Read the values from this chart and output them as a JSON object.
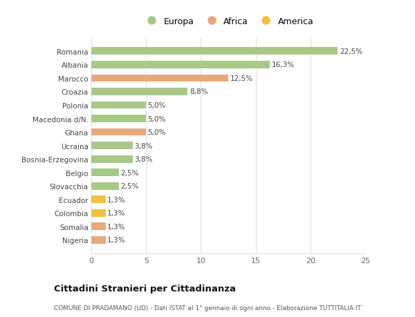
{
  "categories": [
    "Nigeria",
    "Somalia",
    "Colombia",
    "Ecuador",
    "Slovacchia",
    "Belgio",
    "Bosnia-Erzegovina",
    "Ucraina",
    "Ghana",
    "Macedonia d/N.",
    "Polonia",
    "Croazia",
    "Marocco",
    "Albania",
    "Romania"
  ],
  "values": [
    1.3,
    1.3,
    1.3,
    1.3,
    2.5,
    2.5,
    3.8,
    3.8,
    5.0,
    5.0,
    5.0,
    8.8,
    12.5,
    16.3,
    22.5
  ],
  "colors": [
    "#e8a87c",
    "#e8a87c",
    "#f0c040",
    "#f0c040",
    "#a8c887",
    "#a8c887",
    "#a8c887",
    "#a8c887",
    "#e8a87c",
    "#a8c887",
    "#a8c887",
    "#a8c887",
    "#e8a87c",
    "#a8c887",
    "#a8c887"
  ],
  "labels": [
    "1,3%",
    "1,3%",
    "1,3%",
    "1,3%",
    "2,5%",
    "2,5%",
    "3,8%",
    "3,8%",
    "5,0%",
    "5,0%",
    "5,0%",
    "8,8%",
    "12,5%",
    "16,3%",
    "22,5%"
  ],
  "legend_labels": [
    "Europa",
    "Africa",
    "America"
  ],
  "legend_colors": [
    "#a8c887",
    "#e8a87c",
    "#f0c040"
  ],
  "title": "Cittadini Stranieri per Cittadinanza",
  "subtitle": "COMUNE DI PRADAMANO (UD) - Dati ISTAT al 1° gennaio di ogni anno - Elaborazione TUTTITALIA.IT",
  "xlim": [
    0,
    25
  ],
  "xticks": [
    0,
    5,
    10,
    15,
    20,
    25
  ],
  "background_color": "#ffffff",
  "grid_color": "#e0e0e0"
}
